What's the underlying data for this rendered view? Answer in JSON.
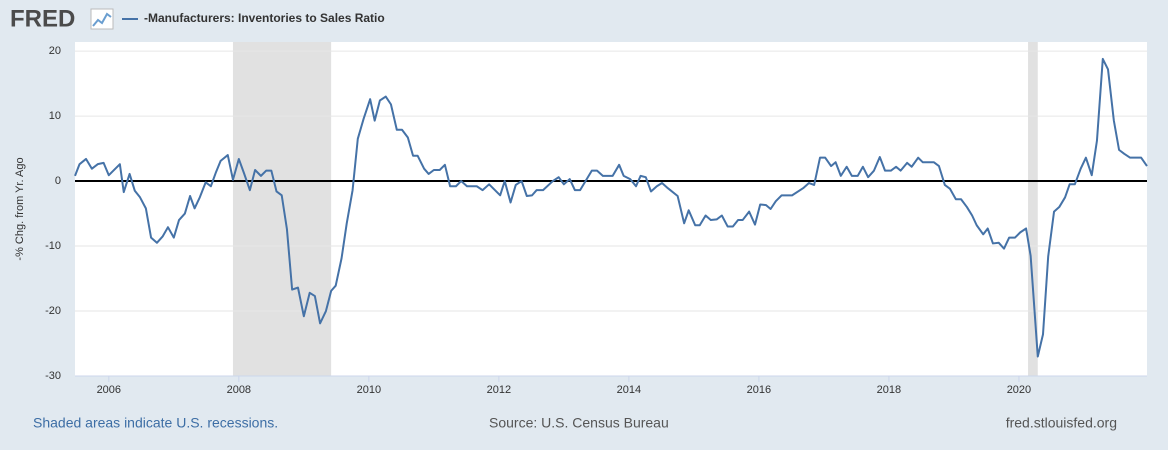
{
  "chart_data": {
    "type": "line",
    "logo": "FRED",
    "title": "-Manufacturers: Inventories to Sales Ratio",
    "y_label": "-% Chg. from Yr. Ago",
    "notes": [
      "Shaded areas indicate U.S. recessions.",
      "Source: U.S. Census Bureau",
      "fred.stlouisfed.org"
    ],
    "xlim": [
      2005.48,
      2021.97
    ],
    "xticks": [
      2006,
      2008,
      2010,
      2012,
      2014,
      2016,
      2018,
      2020
    ],
    "ylim": [
      -30,
      21.4
    ],
    "yticks": [
      20,
      10,
      0,
      -10,
      -20,
      -30
    ],
    "grid": true,
    "zero_line": true,
    "recessions": [
      [
        2007.91,
        2009.42
      ],
      [
        2020.14,
        2020.29
      ]
    ],
    "recession_color": "#e1e1e1",
    "x": [
      2005.48,
      2005.55,
      2005.65,
      2005.74,
      2005.83,
      2005.92,
      2006.0,
      2006.17,
      2006.23,
      2006.32,
      2006.4,
      2006.48,
      2006.57,
      2006.65,
      2006.74,
      2006.83,
      2006.91,
      2007.0,
      2007.08,
      2007.17,
      2007.25,
      2007.32,
      2007.4,
      2007.49,
      2007.57,
      2007.65,
      2007.72,
      2007.83,
      2007.91,
      2008.0,
      2008.08,
      2008.17,
      2008.25,
      2008.34,
      2008.42,
      2008.5,
      2008.58,
      2008.66,
      2008.74,
      2008.82,
      2008.91,
      2009.0,
      2009.09,
      2009.17,
      2009.25,
      2009.34,
      2009.42,
      2009.49,
      2009.58,
      2009.66,
      2009.75,
      2009.83,
      2009.92,
      2010.02,
      2010.09,
      2010.17,
      2010.26,
      2010.34,
      2010.43,
      2010.51,
      2010.6,
      2010.68,
      2010.75,
      2010.85,
      2010.92,
      2011.0,
      2011.09,
      2011.17,
      2011.25,
      2011.34,
      2011.42,
      2011.51,
      2011.66,
      2011.75,
      2011.85,
      2012.02,
      2012.09,
      2012.18,
      2012.26,
      2012.35,
      2012.43,
      2012.51,
      2012.58,
      2012.68,
      2012.83,
      2012.92,
      2013.0,
      2013.09,
      2013.17,
      2013.25,
      2013.43,
      2013.51,
      2013.6,
      2013.75,
      2013.85,
      2013.92,
      2014.02,
      2014.11,
      2014.18,
      2014.26,
      2014.34,
      2014.43,
      2014.51,
      2014.6,
      2014.75,
      2014.85,
      2014.92,
      2015.02,
      2015.09,
      2015.18,
      2015.26,
      2015.35,
      2015.43,
      2015.52,
      2015.6,
      2015.68,
      2015.75,
      2015.85,
      2015.94,
      2016.02,
      2016.11,
      2016.18,
      2016.26,
      2016.35,
      2016.43,
      2016.51,
      2016.68,
      2016.77,
      2016.85,
      2016.94,
      2017.02,
      2017.11,
      2017.18,
      2017.26,
      2017.35,
      2017.43,
      2017.52,
      2017.6,
      2017.68,
      2017.77,
      2017.86,
      2017.94,
      2018.03,
      2018.11,
      2018.18,
      2018.28,
      2018.35,
      2018.45,
      2018.52,
      2018.69,
      2018.77,
      2018.86,
      2018.94,
      2019.03,
      2019.11,
      2019.2,
      2019.28,
      2019.35,
      2019.45,
      2019.52,
      2019.6,
      2019.69,
      2019.77,
      2019.85,
      2019.94,
      2020.02,
      2020.11,
      2020.18,
      2020.29,
      2020.37,
      2020.45,
      2020.54,
      2020.62,
      2020.71,
      2020.78,
      2020.86,
      2020.95,
      2021.03,
      2021.12,
      2021.2,
      2021.29,
      2021.37,
      2021.46,
      2021.54,
      2021.62,
      2021.71,
      2021.88,
      2021.97
    ],
    "series": [
      {
        "name": "-Manufacturers: Inventories to Sales Ratio",
        "color": "#4572a7",
        "values": [
          0.8,
          2.6,
          3.4,
          1.9,
          2.6,
          2.8,
          0.9,
          2.6,
          -1.7,
          1.1,
          -1.5,
          -2.5,
          -4.2,
          -8.7,
          -9.5,
          -8.5,
          -7.1,
          -8.7,
          -6.0,
          -5.0,
          -2.3,
          -4.2,
          -2.5,
          -0.2,
          -0.8,
          1.4,
          3.1,
          4.0,
          0.2,
          3.4,
          1.2,
          -1.4,
          1.7,
          0.8,
          1.6,
          1.6,
          -1.6,
          -2.2,
          -7.4,
          -16.7,
          -16.4,
          -20.8,
          -17.2,
          -17.7,
          -21.9,
          -20.0,
          -16.9,
          -16.1,
          -11.9,
          -6.5,
          -1.4,
          6.5,
          9.6,
          12.6,
          9.3,
          12.4,
          13.0,
          11.8,
          7.9,
          7.9,
          6.7,
          3.9,
          3.9,
          1.9,
          1.1,
          1.7,
          1.7,
          2.5,
          -0.8,
          -0.8,
          0,
          -0.8,
          -0.8,
          -1.4,
          -0.5,
          -2.2,
          0,
          -3.3,
          -0.6,
          0,
          -2.3,
          -2.2,
          -1.4,
          -1.4,
          0,
          0.6,
          -0.5,
          0.3,
          -1.4,
          -1.4,
          1.6,
          1.6,
          0.8,
          0.8,
          2.5,
          0.8,
          0.3,
          -0.8,
          0.8,
          0.6,
          -1.6,
          -0.8,
          -0.3,
          -1.1,
          -2.3,
          -6.5,
          -4.5,
          -6.8,
          -6.8,
          -5.3,
          -6.0,
          -5.9,
          -5.3,
          -7.0,
          -7.0,
          -6.0,
          -6.0,
          -4.7,
          -6.7,
          -3.6,
          -3.7,
          -4.3,
          -3.1,
          -2.2,
          -2.2,
          -2.2,
          -1.1,
          -0.3,
          -0.6,
          3.6,
          3.6,
          2.3,
          2.9,
          0.8,
          2.2,
          0.8,
          0.8,
          2.2,
          0.6,
          1.6,
          3.7,
          1.6,
          1.6,
          2.2,
          1.6,
          2.8,
          2.2,
          3.6,
          2.9,
          2.9,
          2.3,
          -0.6,
          -1.2,
          -2.8,
          -2.8,
          -4.0,
          -5.3,
          -6.8,
          -8.2,
          -7.3,
          -9.6,
          -9.5,
          -10.4,
          -8.7,
          -8.7,
          -7.9,
          -7.3,
          -11.5,
          -27.0,
          -23.6,
          -11.6,
          -4.7,
          -4.0,
          -2.5,
          -0.5,
          -0.5,
          1.9,
          3.6,
          0.9,
          6.2,
          18.8,
          17.2,
          9.3,
          4.8,
          4.2,
          3.6,
          3.6,
          2.3
        ]
      }
    ]
  }
}
